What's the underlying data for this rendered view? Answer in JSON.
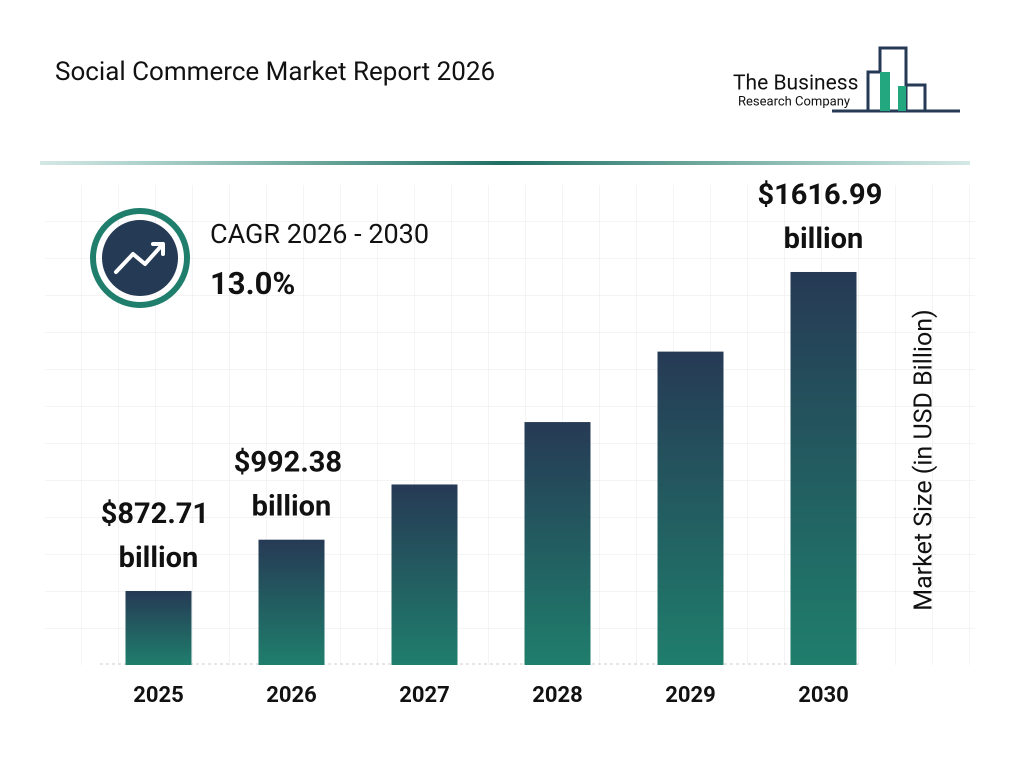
{
  "chart_data": {
    "type": "bar",
    "title": "Social Commerce Market Report 2026",
    "categories": [
      "2025",
      "2026",
      "2027",
      "2028",
      "2029",
      "2030"
    ],
    "values": [
      872.71,
      992.38,
      1121.2,
      1266.8,
      1431.2,
      1616.99
    ],
    "value_labels": [
      "$872.71 billion",
      "$992.38 billion",
      null,
      null,
      null,
      "$1616.99 billion"
    ],
    "gradient": [
      "#263a55",
      "#1f7e6c"
    ],
    "ylim": [
      700,
      1700
    ],
    "y_label": "Market Size (in USD Billion)",
    "cagr_label": "CAGR 2026 - 2030",
    "cagr_value": "13.0%"
  },
  "brand": {
    "line1": "The Business",
    "line2": "Research Company"
  }
}
